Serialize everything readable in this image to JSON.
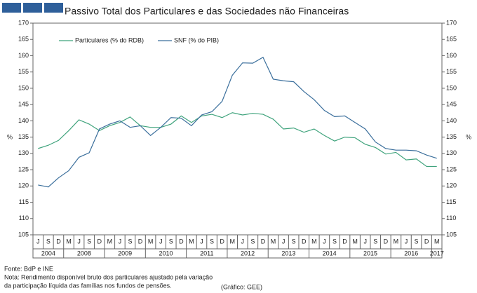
{
  "chart_data": {
    "type": "line",
    "title": "Passivo Total dos Particulares e das Sociedades não Financeiras",
    "categories": [
      "J",
      "S",
      "D",
      "M",
      "J",
      "S",
      "D",
      "M",
      "J",
      "S",
      "D",
      "M",
      "J",
      "S",
      "D",
      "M",
      "J",
      "S",
      "D",
      "M",
      "J",
      "S",
      "D",
      "M",
      "J",
      "S",
      "D",
      "M",
      "J",
      "S",
      "D",
      "M",
      "J",
      "S",
      "D",
      "M",
      "J",
      "S",
      "D",
      "M"
    ],
    "category_groups": [
      {
        "label": "2004",
        "count": 3
      },
      {
        "label": "2008",
        "count": 4
      },
      {
        "label": "2009",
        "count": 4
      },
      {
        "label": "2010",
        "count": 4
      },
      {
        "label": "2011",
        "count": 4
      },
      {
        "label": "2012",
        "count": 4
      },
      {
        "label": "2013",
        "count": 4
      },
      {
        "label": "2014",
        "count": 4
      },
      {
        "label": "2015",
        "count": 4
      },
      {
        "label": "2016",
        "count": 4
      },
      {
        "label": "2017",
        "count": 1
      }
    ],
    "series": [
      {
        "name": "Particulares (% do RDB)",
        "color": "#3fa37c",
        "values": [
          131.5,
          132.5,
          134,
          137,
          140.3,
          139,
          137,
          138.5,
          139.5,
          141.2,
          138.5,
          138,
          138,
          139,
          141.5,
          139.5,
          141.5,
          142,
          141,
          142.5,
          141.8,
          142.3,
          142,
          140.5,
          137.5,
          137.8,
          136.5,
          137.5,
          135.5,
          133.8,
          135,
          134.8,
          132.8,
          131.8,
          129.8,
          130.3,
          128,
          128.3,
          126,
          126
        ]
      },
      {
        "name": "SNF (% do PIB)",
        "color": "#3b6f9c",
        "values": [
          120.3,
          119.7,
          122.5,
          124.7,
          128.8,
          130.2,
          137.5,
          139,
          140,
          138,
          138.5,
          135.5,
          138,
          141,
          140.8,
          138.5,
          141.8,
          142.8,
          146,
          154,
          157.8,
          157.7,
          159.5,
          152.8,
          152.3,
          152,
          149,
          146.5,
          143.2,
          141.3,
          141.5,
          139.5,
          137.5,
          133.5,
          131.5,
          131,
          131,
          130.8,
          129.5,
          128.5
        ]
      }
    ],
    "ylabel": "%",
    "y2label": "%",
    "ylim": [
      105,
      170
    ],
    "yticks": [
      105,
      110,
      115,
      120,
      125,
      130,
      135,
      140,
      145,
      150,
      155,
      160,
      165,
      170
    ],
    "y2lim": [
      105,
      170
    ],
    "y2ticks": [
      105,
      110,
      115,
      120,
      125,
      130,
      135,
      140,
      145,
      150,
      155,
      160,
      165,
      170
    ],
    "legend": "top-left",
    "notes": [
      "Fonte: BdP e INE",
      "Nota: Rendimento disponível bruto dos particulares ajustado pela variação",
      " da participação líquida das famílias nos fundos de pensões."
    ],
    "credit": "(Gráfico: GEE)"
  }
}
